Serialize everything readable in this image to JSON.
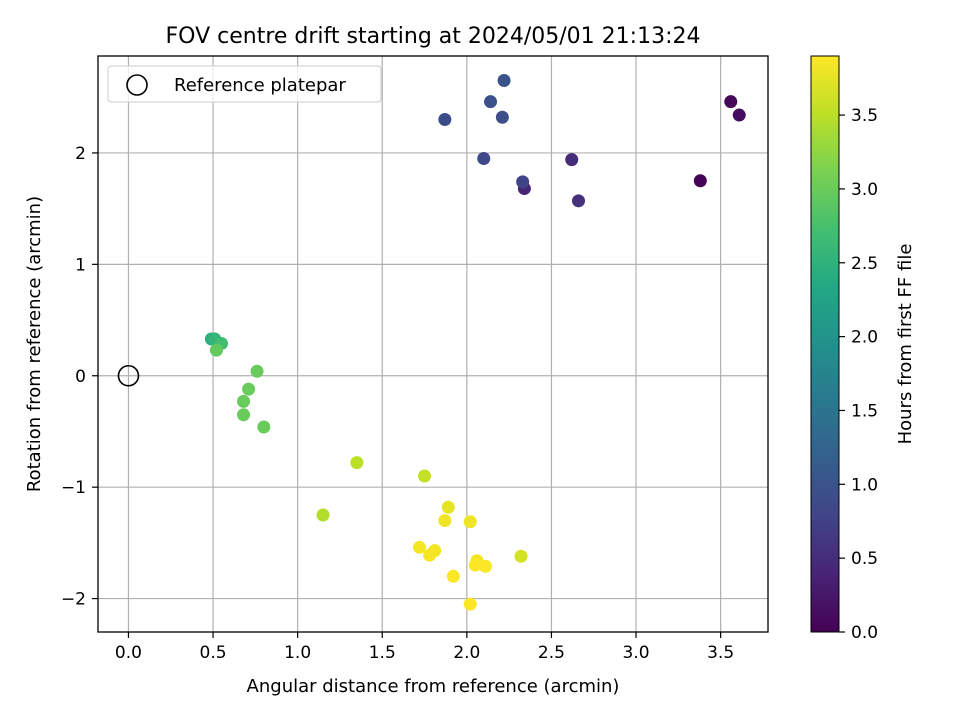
{
  "chart_data": {
    "type": "scatter",
    "title": "FOV centre drift starting at 2024/05/01 21:13:24",
    "xlabel": "Angular distance from reference (arcmin)",
    "ylabel": "Rotation from reference (arcmin)",
    "xlim": [
      -0.18,
      3.78
    ],
    "ylim": [
      -2.3,
      2.87
    ],
    "xticks": [
      0.0,
      0.5,
      1.0,
      1.5,
      2.0,
      2.5,
      3.0,
      3.5
    ],
    "xtick_labels": [
      "0.0",
      "0.5",
      "1.0",
      "1.5",
      "2.0",
      "2.5",
      "3.0",
      "3.5"
    ],
    "yticks": [
      -2,
      -1,
      0,
      1,
      2
    ],
    "ytick_labels": [
      "−2",
      "−1",
      "0",
      "1",
      "2"
    ],
    "grid": true,
    "legend": {
      "placement": "top-left",
      "entries": [
        "Reference platepar"
      ]
    },
    "reference_point": {
      "name": "Reference platepar",
      "x": 0.0,
      "y": 0.0
    },
    "colorbar": {
      "label": "Hours from first FF file",
      "colormap": "viridis",
      "range": [
        0.0,
        3.9
      ],
      "ticks": [
        0.0,
        0.5,
        1.0,
        1.5,
        2.0,
        2.5,
        3.0,
        3.5
      ],
      "tick_labels": [
        "0.0",
        "0.5",
        "1.0",
        "1.5",
        "2.0",
        "2.5",
        "3.0",
        "3.5"
      ]
    },
    "points": [
      {
        "x": 3.38,
        "y": 1.75,
        "hours": 0.02
      },
      {
        "x": 3.56,
        "y": 2.46,
        "hours": 0.08
      },
      {
        "x": 3.61,
        "y": 2.34,
        "hours": 0.14
      },
      {
        "x": 2.34,
        "y": 1.68,
        "hours": 0.4
      },
      {
        "x": 2.62,
        "y": 1.94,
        "hours": 0.5
      },
      {
        "x": 2.66,
        "y": 1.57,
        "hours": 0.55
      },
      {
        "x": 2.33,
        "y": 1.74,
        "hours": 0.8
      },
      {
        "x": 2.1,
        "y": 1.95,
        "hours": 0.85
      },
      {
        "x": 1.87,
        "y": 2.3,
        "hours": 0.9
      },
      {
        "x": 2.21,
        "y": 2.32,
        "hours": 0.92
      },
      {
        "x": 2.14,
        "y": 2.46,
        "hours": 0.95
      },
      {
        "x": 2.22,
        "y": 2.65,
        "hours": 1.0
      },
      {
        "x": 0.49,
        "y": 0.33,
        "hours": 2.45
      },
      {
        "x": 0.51,
        "y": 0.33,
        "hours": 2.55
      },
      {
        "x": 0.55,
        "y": 0.29,
        "hours": 2.7
      },
      {
        "x": 0.52,
        "y": 0.23,
        "hours": 2.95
      },
      {
        "x": 0.76,
        "y": 0.04,
        "hours": 3.0
      },
      {
        "x": 0.71,
        "y": -0.12,
        "hours": 3.0
      },
      {
        "x": 0.68,
        "y": -0.23,
        "hours": 3.0
      },
      {
        "x": 0.68,
        "y": -0.35,
        "hours": 3.0
      },
      {
        "x": 0.8,
        "y": -0.46,
        "hours": 3.0
      },
      {
        "x": 1.15,
        "y": -1.25,
        "hours": 3.45
      },
      {
        "x": 1.35,
        "y": -0.78,
        "hours": 3.5
      },
      {
        "x": 1.75,
        "y": -0.9,
        "hours": 3.55
      },
      {
        "x": 2.32,
        "y": -1.62,
        "hours": 3.65
      },
      {
        "x": 1.89,
        "y": -1.18,
        "hours": 3.75
      },
      {
        "x": 1.87,
        "y": -1.3,
        "hours": 3.8
      },
      {
        "x": 2.02,
        "y": -1.31,
        "hours": 3.8
      },
      {
        "x": 1.72,
        "y": -1.54,
        "hours": 3.85
      },
      {
        "x": 1.81,
        "y": -1.57,
        "hours": 3.85
      },
      {
        "x": 1.78,
        "y": -1.61,
        "hours": 3.85
      },
      {
        "x": 2.06,
        "y": -1.66,
        "hours": 3.85
      },
      {
        "x": 2.05,
        "y": -1.7,
        "hours": 3.88
      },
      {
        "x": 2.11,
        "y": -1.71,
        "hours": 3.88
      },
      {
        "x": 1.92,
        "y": -1.8,
        "hours": 3.88
      },
      {
        "x": 2.02,
        "y": -2.05,
        "hours": 3.9
      }
    ]
  }
}
